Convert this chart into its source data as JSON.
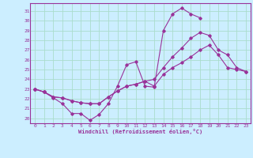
{
  "xlabel": "Windchill (Refroidissement éolien,°C)",
  "bg_color": "#cceeff",
  "grid_color": "#aaddcc",
  "line_color": "#993399",
  "xlim": [
    -0.5,
    23.5
  ],
  "ylim": [
    19.5,
    31.8
  ],
  "xticks": [
    0,
    1,
    2,
    3,
    4,
    5,
    6,
    7,
    8,
    9,
    10,
    11,
    12,
    13,
    14,
    15,
    16,
    17,
    18,
    19,
    20,
    21,
    22,
    23
  ],
  "yticks": [
    20,
    21,
    22,
    23,
    24,
    25,
    26,
    27,
    28,
    29,
    30,
    31
  ],
  "series": [
    [
      23.0,
      22.7,
      22.1,
      21.5,
      20.5,
      20.5,
      19.8,
      20.4,
      21.5,
      23.3,
      25.5,
      25.8,
      23.3,
      23.2,
      29.0,
      30.7,
      31.3,
      30.7,
      30.3,
      null,
      null,
      null,
      null,
      null
    ],
    [
      23.0,
      22.7,
      22.2,
      22.1,
      21.8,
      21.6,
      21.5,
      21.5,
      22.2,
      22.8,
      23.3,
      23.5,
      23.8,
      23.3,
      24.5,
      25.2,
      25.7,
      26.3,
      27.0,
      27.5,
      26.5,
      25.2,
      25.0,
      24.8
    ],
    [
      23.0,
      22.7,
      22.2,
      22.1,
      21.8,
      21.6,
      21.5,
      21.5,
      22.2,
      22.8,
      23.3,
      23.5,
      23.8,
      24.0,
      25.2,
      26.3,
      27.2,
      28.2,
      28.8,
      28.5,
      27.0,
      26.5,
      25.2,
      24.8
    ]
  ]
}
